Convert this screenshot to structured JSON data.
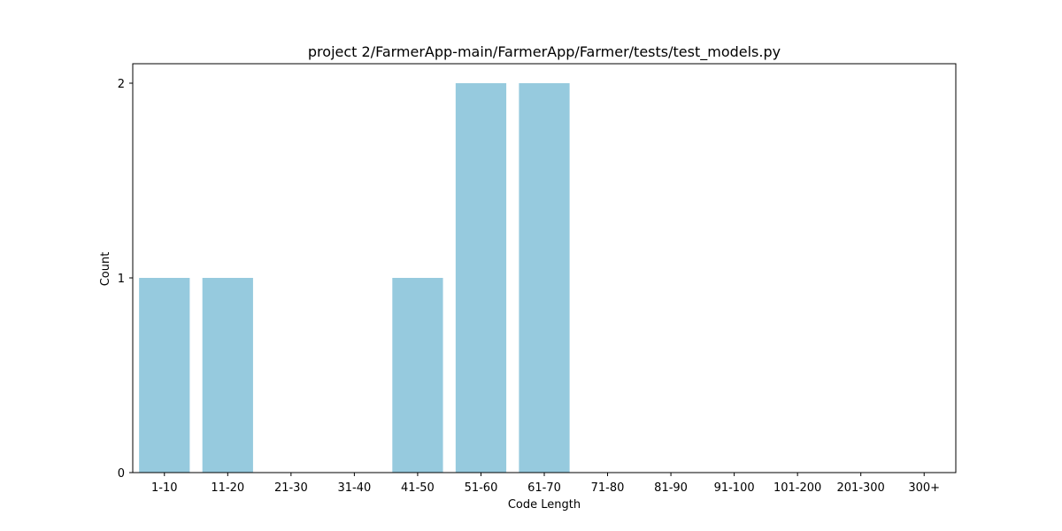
{
  "chart_data": {
    "type": "bar",
    "title": "project 2/FarmerApp-main/FarmerApp/Farmer/tests/test_models.py",
    "xlabel": "Code Length",
    "ylabel": "Count",
    "categories": [
      "1-10",
      "11-20",
      "21-30",
      "31-40",
      "41-50",
      "51-60",
      "61-70",
      "71-80",
      "81-90",
      "91-100",
      "101-200",
      "201-300",
      "300+"
    ],
    "values": [
      1,
      1,
      0,
      0,
      1,
      2,
      2,
      0,
      0,
      0,
      0,
      0,
      0
    ],
    "ylim": [
      0,
      2.1
    ],
    "yticks": [
      0,
      1,
      2
    ],
    "grid": false,
    "bar_color": "#96cade"
  }
}
